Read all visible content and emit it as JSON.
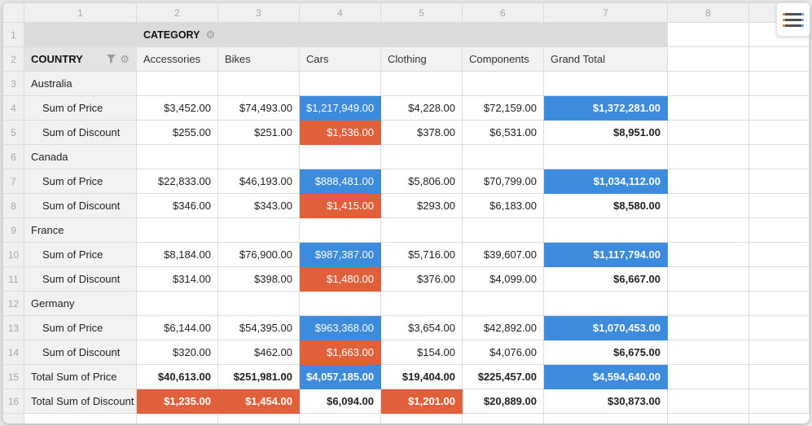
{
  "colors": {
    "highlight_blue": "#3c8bdc",
    "highlight_orange": "#e0603c"
  },
  "menu_button": {
    "bar_left": "#dd8a51",
    "bar_mid": "#4f4f4f",
    "bar_right": "#74a5d6"
  },
  "grid": {
    "column_numbers": [
      "1",
      "2",
      "3",
      "4",
      "5",
      "6",
      "7",
      "8"
    ],
    "category_row": {
      "number": "1",
      "label": "CATEGORY",
      "icon": "gear"
    },
    "header_row": {
      "number": "2",
      "row_label": "COUNTRY",
      "icons": [
        "filter",
        "gear"
      ],
      "columns": [
        "Accessories",
        "Bikes",
        "Cars",
        "Clothing",
        "Components",
        "Grand Total"
      ]
    },
    "data_rows": [
      {
        "n": "3",
        "label": "Australia",
        "kind": "group",
        "cells": [
          "",
          "",
          "",
          "",
          "",
          ""
        ],
        "styles": [
          "",
          "",
          "",
          "",
          "",
          ""
        ]
      },
      {
        "n": "4",
        "label": "Sum of Price",
        "kind": "measure",
        "cells": [
          "$3,452.00",
          "$74,493.00",
          "$1,217,949.00",
          "$4,228.00",
          "$72,159.00",
          "$1,372,281.00"
        ],
        "styles": [
          "",
          "",
          "blue",
          "",
          "",
          "blue bold"
        ]
      },
      {
        "n": "5",
        "label": "Sum of Discount",
        "kind": "measure",
        "cells": [
          "$255.00",
          "$251.00",
          "$1,536.00",
          "$378.00",
          "$6,531.00",
          "$8,951.00"
        ],
        "styles": [
          "",
          "",
          "orange",
          "",
          "",
          "bold"
        ]
      },
      {
        "n": "6",
        "label": "Canada",
        "kind": "group",
        "cells": [
          "",
          "",
          "",
          "",
          "",
          ""
        ],
        "styles": [
          "",
          "",
          "",
          "",
          "",
          ""
        ]
      },
      {
        "n": "7",
        "label": "Sum of Price",
        "kind": "measure",
        "cells": [
          "$22,833.00",
          "$46,193.00",
          "$888,481.00",
          "$5,806.00",
          "$70,799.00",
          "$1,034,112.00"
        ],
        "styles": [
          "",
          "",
          "blue",
          "",
          "",
          "blue bold"
        ]
      },
      {
        "n": "8",
        "label": "Sum of Discount",
        "kind": "measure",
        "cells": [
          "$346.00",
          "$343.00",
          "$1,415.00",
          "$293.00",
          "$6,183.00",
          "$8,580.00"
        ],
        "styles": [
          "",
          "",
          "orange",
          "",
          "",
          "bold"
        ]
      },
      {
        "n": "9",
        "label": "France",
        "kind": "group",
        "cells": [
          "",
          "",
          "",
          "",
          "",
          ""
        ],
        "styles": [
          "",
          "",
          "",
          "",
          "",
          ""
        ]
      },
      {
        "n": "10",
        "label": "Sum of Price",
        "kind": "measure",
        "cells": [
          "$8,184.00",
          "$76,900.00",
          "$987,387.00",
          "$5,716.00",
          "$39,607.00",
          "$1,117,794.00"
        ],
        "styles": [
          "",
          "",
          "blue",
          "",
          "",
          "blue bold"
        ]
      },
      {
        "n": "11",
        "label": "Sum of Discount",
        "kind": "measure",
        "cells": [
          "$314.00",
          "$398.00",
          "$1,480.00",
          "$376.00",
          "$4,099.00",
          "$6,667.00"
        ],
        "styles": [
          "",
          "",
          "orange",
          "",
          "",
          "bold"
        ]
      },
      {
        "n": "12",
        "label": "Germany",
        "kind": "group",
        "cells": [
          "",
          "",
          "",
          "",
          "",
          ""
        ],
        "styles": [
          "",
          "",
          "",
          "",
          "",
          ""
        ]
      },
      {
        "n": "13",
        "label": "Sum of Price",
        "kind": "measure",
        "cells": [
          "$6,144.00",
          "$54,395.00",
          "$963,368.00",
          "$3,654.00",
          "$42,892.00",
          "$1,070,453.00"
        ],
        "styles": [
          "",
          "",
          "blue",
          "",
          "",
          "blue bold"
        ]
      },
      {
        "n": "14",
        "label": "Sum of Discount",
        "kind": "measure",
        "cells": [
          "$320.00",
          "$462.00",
          "$1,663.00",
          "$154.00",
          "$4,076.00",
          "$6,675.00"
        ],
        "styles": [
          "",
          "",
          "orange",
          "",
          "",
          "bold"
        ]
      },
      {
        "n": "15",
        "label": "Total Sum of Price",
        "kind": "total",
        "cells": [
          "$40,613.00",
          "$251,981.00",
          "$4,057,185.00",
          "$19,404.00",
          "$225,457.00",
          "$4,594,640.00"
        ],
        "styles": [
          "bold",
          "bold",
          "blue bold",
          "bold",
          "bold",
          "blue bold"
        ]
      },
      {
        "n": "16",
        "label": "Total Sum of Discount",
        "kind": "total",
        "cells": [
          "$1,235.00",
          "$1,454.00",
          "$6,094.00",
          "$1,201.00",
          "$20,889.00",
          "$30,873.00"
        ],
        "styles": [
          "orange bold",
          "orange bold",
          "bold",
          "orange bold",
          "bold",
          "bold"
        ]
      }
    ]
  },
  "icons": {
    "gear": "⚙︎"
  }
}
